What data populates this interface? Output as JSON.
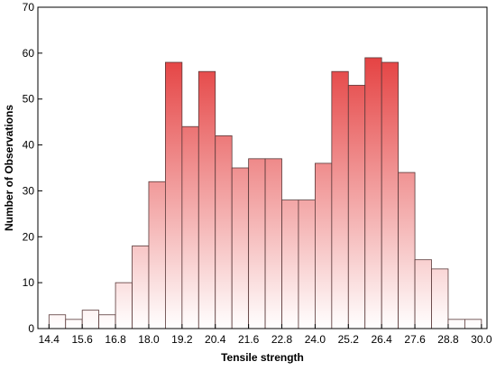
{
  "chart_data": {
    "type": "bar",
    "title": "",
    "xlabel": "Tensile strength",
    "ylabel": "Number of Observations",
    "x_ticks": [
      "14.4",
      "15.6",
      "16.8",
      "18.0",
      "19.2",
      "20.4",
      "21.6",
      "22.8",
      "24.0",
      "25.2",
      "26.4",
      "27.6",
      "28.8",
      "30.0"
    ],
    "bin_edges": [
      14.4,
      15.0,
      15.6,
      16.2,
      16.8,
      17.4,
      18.0,
      18.6,
      19.2,
      19.8,
      20.4,
      21.0,
      21.6,
      22.2,
      22.8,
      23.4,
      24.0,
      24.6,
      25.2,
      25.8,
      26.4,
      27.0,
      27.6,
      28.2,
      28.8,
      29.4,
      30.0
    ],
    "values": [
      3,
      2,
      4,
      3,
      10,
      18,
      32,
      58,
      44,
      56,
      42,
      35,
      37,
      37,
      28,
      28,
      36,
      56,
      53,
      59,
      58,
      34,
      15,
      13,
      2,
      2
    ],
    "xlim": [
      14.0,
      30.2
    ],
    "ylim": [
      0,
      70
    ],
    "y_ticks": [
      0,
      10,
      20,
      30,
      40,
      50,
      60,
      70
    ],
    "grid": false,
    "colors": {
      "peak": "#e02020",
      "base": "#ffffff"
    }
  }
}
